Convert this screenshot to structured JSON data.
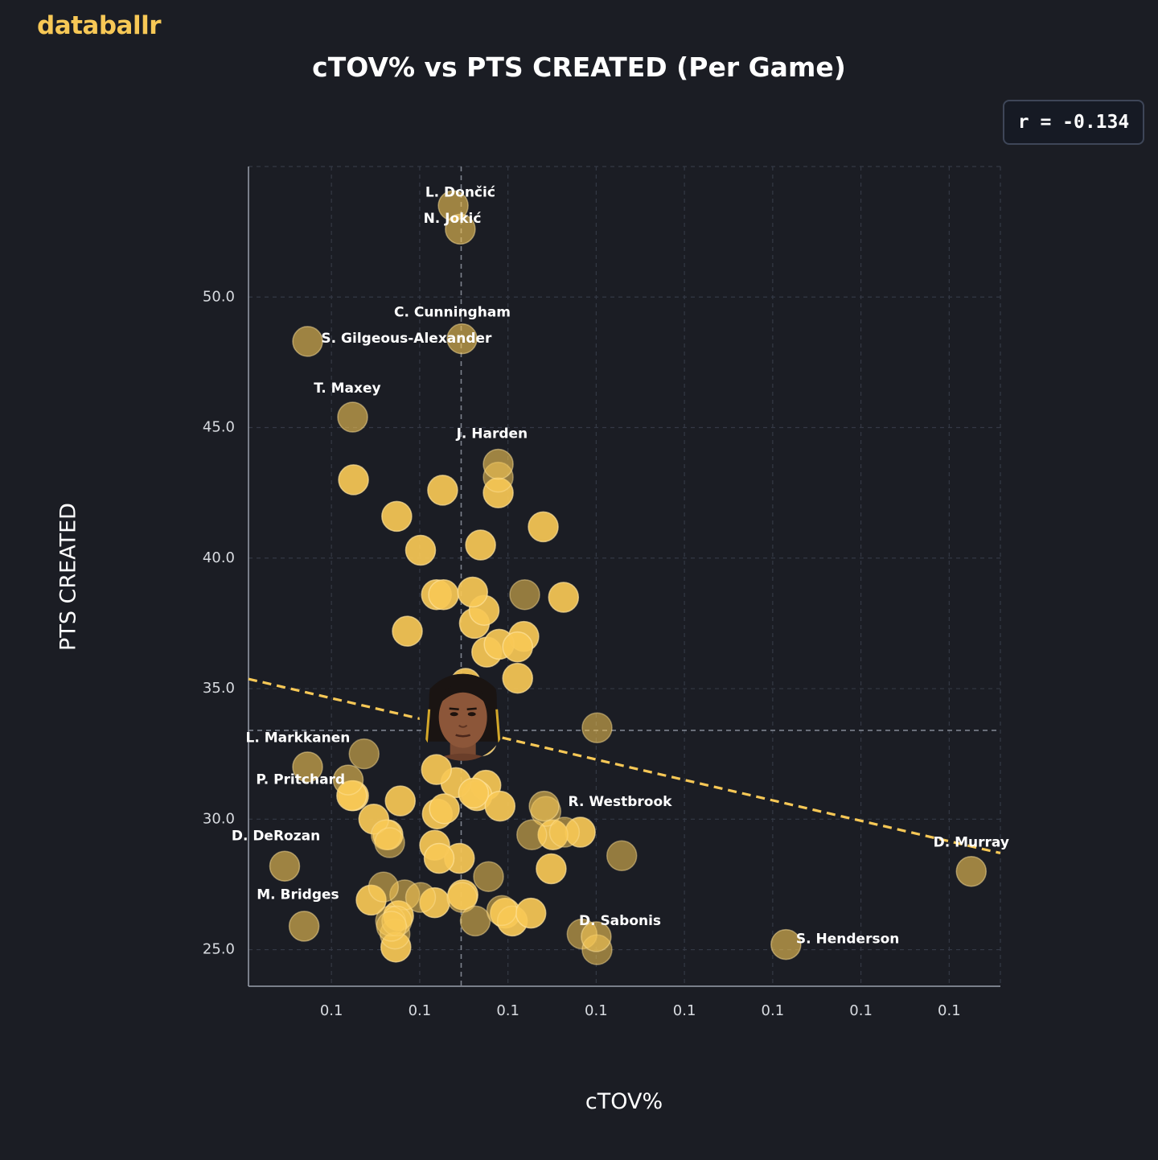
{
  "brand": "databallr",
  "correlation_label": "r = -0.134",
  "colors": {
    "accent": "#f7c856",
    "background": "#1b1d24",
    "point": "#f7c856"
  },
  "chart_data": {
    "type": "scatter",
    "title": "cTOV% vs PTS CREATED (Per Game)",
    "xlabel": "cTOV%",
    "ylabel": "PTS CREATED",
    "xlim": [
      0.0953,
      0.1805
    ],
    "ylim": [
      23.6,
      55.0
    ],
    "x_tick_values": [
      0.1047,
      0.1147,
      0.1247,
      0.1347,
      0.1447,
      0.1547,
      0.1647,
      0.1747
    ],
    "x_tick_labels": [
      "0.1",
      "0.1",
      "0.1",
      "0.1",
      "0.1",
      "0.1",
      "0.1",
      "0.1"
    ],
    "y_ticks": [
      25.0,
      30.0,
      35.0,
      40.0,
      45.0,
      50.0
    ],
    "y_tick_labels": [
      "25.0",
      "30.0",
      "35.0",
      "40.0",
      "45.0",
      "50.0"
    ],
    "mean_x": 0.1194,
    "mean_y": 33.4,
    "trendline": {
      "x": [
        0.0953,
        0.1805
      ],
      "y": [
        35.37,
        28.7
      ]
    },
    "highlight_player": {
      "x": 0.1196,
      "y": 33.9
    },
    "labeled_points": [
      {
        "name": "L. Dončić",
        "x": 0.1185,
        "y": 53.5,
        "tx": 0.1193,
        "ty": 54.0
      },
      {
        "name": "N. Jokić",
        "x": 0.1193,
        "y": 52.6,
        "tx": 0.1184,
        "ty": 53.0
      },
      {
        "name": "C. Cunningham",
        "x": 0.1195,
        "y": 48.4,
        "tx": 0.1184,
        "ty": 49.4
      },
      {
        "name": "S. Gilgeous-Alexander",
        "x": 0.102,
        "y": 48.3,
        "tx": 0.1132,
        "ty": 48.4
      },
      {
        "name": "T. Maxey",
        "x": 0.1071,
        "y": 45.4,
        "tx": 0.1065,
        "ty": 46.5
      },
      {
        "name": "J. Harden",
        "x": 0.1236,
        "y": 43.6,
        "tx": 0.1229,
        "ty": 44.75
      },
      {
        "name": "L. Markkanen",
        "x": 0.102,
        "y": 32.0,
        "tx": 0.1009,
        "ty": 33.1
      },
      {
        "name": "P. Pritchard",
        "x": 0.1066,
        "y": 31.5,
        "tx": 0.1012,
        "ty": 31.5
      },
      {
        "name": "R. Westbrook",
        "x": 0.1288,
        "y": 30.5,
        "tx": 0.1374,
        "ty": 30.65
      },
      {
        "name": "D. DeRozan",
        "x": 0.0994,
        "y": 28.2,
        "tx": 0.0984,
        "ty": 29.35
      },
      {
        "name": "D. Murray",
        "x": 0.1772,
        "y": 28.0,
        "tx": 0.1772,
        "ty": 29.1
      },
      {
        "name": "M. Bridges",
        "x": 0.1016,
        "y": 25.9,
        "tx": 0.1009,
        "ty": 27.1
      },
      {
        "name": "D. Sabonis",
        "x": 0.1347,
        "y": 25.5,
        "tx": 0.1374,
        "ty": 26.1
      },
      {
        "name": "S. Henderson",
        "x": 0.1562,
        "y": 25.2,
        "tx": 0.1632,
        "ty": 25.4
      }
    ],
    "other_points": {
      "x": [
        0.1072,
        0.1121,
        0.1133,
        0.1199,
        0.1208,
        0.1217,
        0.1222,
        0.1287,
        0.1148,
        0.1166,
        0.1209,
        0.1223,
        0.1173,
        0.1265,
        0.1237,
        0.131,
        0.1174,
        0.122,
        0.1191,
        0.1212,
        0.1258,
        0.1236,
        0.1258,
        0.1216,
        0.1125,
        0.1188,
        0.1329,
        0.1167,
        0.1238,
        0.1175,
        0.1192,
        0.1208,
        0.1296,
        0.1072,
        0.107,
        0.1111,
        0.1095,
        0.1092,
        0.1164,
        0.1164,
        0.112,
        0.1196,
        0.1123,
        0.1244,
        0.1252,
        0.1169,
        0.1166,
        0.1207,
        0.1273,
        0.1298,
        0.129,
        0.1311,
        0.1331,
        0.1348,
        0.1084,
        0.1109,
        0.1113,
        0.1119,
        0.1114,
        0.113,
        0.1121,
        0.1148,
        0.1195,
        0.121,
        0.1225,
        0.124,
        0.1266,
        0.1274,
        0.1348,
        0.1376,
        0.1236,
        0.1106,
        0.1115
      ],
      "y": [
        43.0,
        41.6,
        37.2,
        35.2,
        34.1,
        33.0,
        31.3,
        41.2,
        40.3,
        38.6,
        37.5,
        36.4,
        42.6,
        37.0,
        36.7,
        38.5,
        38.6,
        38.0,
        34.4,
        30.9,
        35.4,
        42.5,
        36.6,
        40.5,
        30.7,
        31.4,
        29.5,
        30.2,
        30.5,
        30.4,
        28.5,
        31.0,
        28.1,
        30.9,
        30.9,
        29.4,
        30.0,
        26.9,
        26.8,
        29.0,
        25.1,
        27.1,
        26.3,
        26.4,
        26.1,
        28.5,
        31.9,
        38.7,
        26.4,
        29.4,
        30.3,
        29.5,
        25.6,
        25.0,
        32.5,
        29.4,
        29.1,
        25.6,
        26.1,
        27.1,
        26.1,
        27.0,
        27.0,
        26.1,
        27.8,
        26.5,
        38.6,
        29.4,
        33.5,
        28.6,
        43.1,
        27.4,
        25.9
      ]
    },
    "highlighted_indices": [
      0,
      1,
      2,
      3,
      4,
      5,
      6,
      7,
      8,
      9,
      10,
      11,
      12,
      13,
      14,
      15,
      16,
      17,
      18,
      19,
      20,
      21,
      22,
      23,
      24,
      25,
      26,
      27,
      28,
      29,
      30,
      31,
      32,
      33,
      34,
      35,
      36,
      37,
      38,
      39,
      40,
      41,
      42,
      43,
      44,
      45,
      46,
      47,
      48,
      49
    ]
  }
}
